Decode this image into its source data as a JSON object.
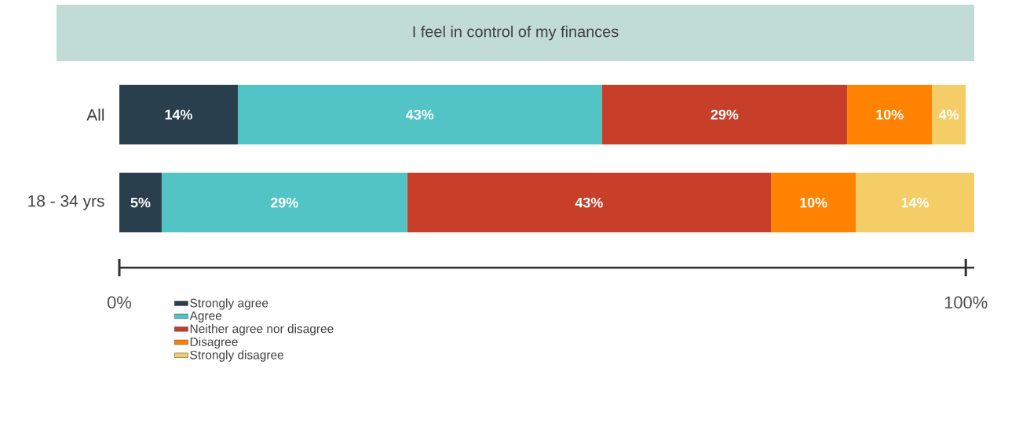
{
  "chart_data": {
    "type": "bar",
    "orientation": "horizontal",
    "stacked": true,
    "title": "I feel in control of my finances",
    "categories": [
      "All",
      "18 - 34 yrs"
    ],
    "series": [
      {
        "name": "Strongly agree",
        "color": "#2a3f4d",
        "values": [
          14,
          5
        ],
        "value_labels": [
          "14%",
          "5%"
        ]
      },
      {
        "name": "Agree",
        "color": "#52c4c6",
        "values": [
          43,
          29
        ],
        "value_labels": [
          "43%",
          "29%"
        ]
      },
      {
        "name": "Neither agree nor disagree",
        "color": "#c73e29",
        "values": [
          29,
          43
        ],
        "value_labels": [
          "29%",
          "43%"
        ]
      },
      {
        "name": "Disagree",
        "color": "#ff8200",
        "values": [
          10,
          10
        ],
        "value_labels": [
          "10%",
          "10%"
        ]
      },
      {
        "name": "Strongly disagree",
        "color": "#f5cd66",
        "values": [
          4,
          14
        ],
        "value_labels": [
          "4%",
          "14%"
        ]
      }
    ],
    "xlim": [
      0,
      101
    ],
    "xticks": [
      {
        "value": 0,
        "label": "0%"
      },
      {
        "value": 100,
        "label": "100%"
      }
    ],
    "grid": false,
    "legend": "bottom"
  }
}
